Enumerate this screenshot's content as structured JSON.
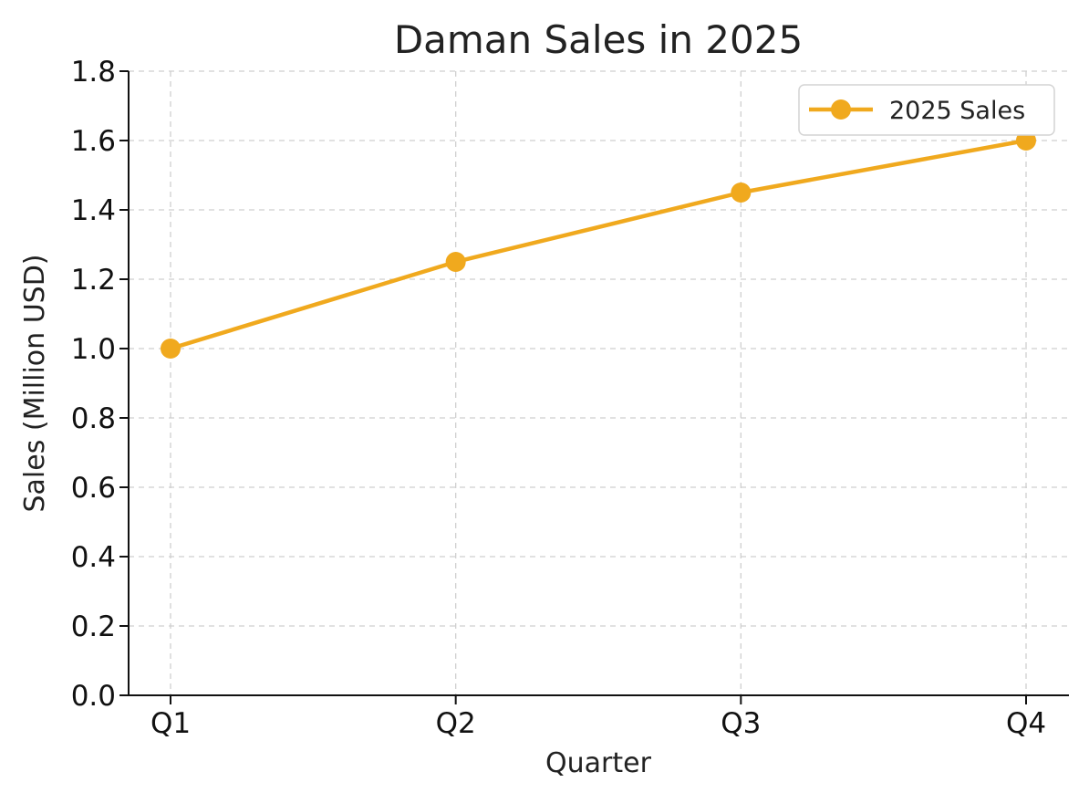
{
  "chart_data": {
    "type": "line",
    "title": "Daman Sales in 2025",
    "xlabel": "Quarter",
    "ylabel": "Sales (Million USD)",
    "categories": [
      "Q1",
      "Q2",
      "Q3",
      "Q4"
    ],
    "series": [
      {
        "name": "2025 Sales",
        "values": [
          1.0,
          1.25,
          1.45,
          1.6
        ],
        "color": "#F0A91E",
        "marker": "circle"
      }
    ],
    "ylim": [
      0,
      1.8
    ],
    "yticks": [
      "0.0",
      "0.2",
      "0.4",
      "0.6",
      "0.8",
      "1.0",
      "1.2",
      "1.4",
      "1.6",
      "1.8"
    ],
    "grid": true,
    "legend_position": "top-right"
  }
}
